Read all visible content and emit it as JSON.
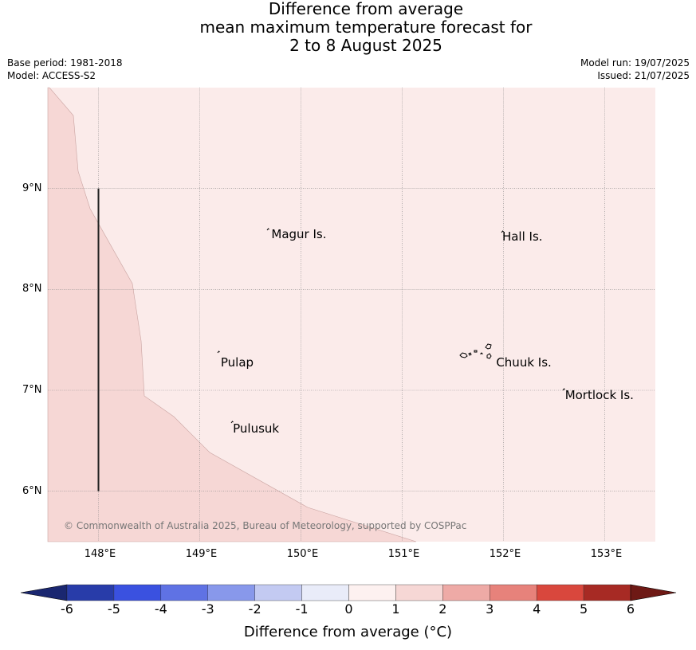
{
  "title": {
    "line1": "Difference from average",
    "line2": "mean maximum temperature forecast for",
    "line3": "2 to 8 August 2025"
  },
  "meta": {
    "base_period": "Base period: 1981-2018",
    "model": "Model: ACCESS-S2",
    "model_run": "Model run: 19/07/2025",
    "issued": "Issued: 21/07/2025"
  },
  "map": {
    "extent": {
      "lon_min": 147.5,
      "lon_max": 153.5,
      "lat_min": 5.5,
      "lat_max": 10.0
    },
    "colors": {
      "light": "#fbebea",
      "medium": "#f6d7d5",
      "grid": "#888888",
      "border": "#c9a3a1"
    },
    "x_ticks": [
      {
        "lon": 148,
        "label": "148°E"
      },
      {
        "lon": 149,
        "label": "149°E"
      },
      {
        "lon": 150,
        "label": "150°E"
      },
      {
        "lon": 151,
        "label": "151°E"
      },
      {
        "lon": 152,
        "label": "152°E"
      },
      {
        "lon": 153,
        "label": "153°E"
      }
    ],
    "y_ticks": [
      {
        "lat": 9,
        "label": "9°N"
      },
      {
        "lat": 8,
        "label": "8°N"
      },
      {
        "lat": 7,
        "label": "7°N"
      },
      {
        "lat": 6,
        "label": "6°N"
      }
    ],
    "places": [
      {
        "name": "Magur Is.",
        "lon": 149.7,
        "lat": 8.55
      },
      {
        "name": "Hall Is.",
        "lon": 151.98,
        "lat": 8.52
      },
      {
        "name": "Pulap",
        "lon": 149.2,
        "lat": 7.28
      },
      {
        "name": "Chuuk Is.",
        "lon": 151.92,
        "lat": 7.28
      },
      {
        "name": "Mortlock Is.",
        "lon": 152.6,
        "lat": 6.95
      },
      {
        "name": "Pulusuk",
        "lon": 149.32,
        "lat": 6.62
      }
    ],
    "copyright": "© Commonwealth of Australia 2025, Bureau of Meteorology, supported by COSPPac"
  },
  "colorbar": {
    "label": "Difference from average (°C)",
    "ticks": [
      "-6",
      "-5",
      "-4",
      "-3",
      "-2",
      "-1",
      "0",
      "1",
      "2",
      "3",
      "4",
      "5",
      "6"
    ],
    "colors": [
      "#283ca9",
      "#3a51e0",
      "#5f72e4",
      "#8898eb",
      "#c3caf2",
      "#e9ecf9",
      "#fdf1f0",
      "#f6d7d5",
      "#eeaaa6",
      "#e7827b",
      "#d9473d",
      "#a72a24"
    ],
    "extend_low": "#1a2770",
    "extend_high": "#6e1915"
  }
}
